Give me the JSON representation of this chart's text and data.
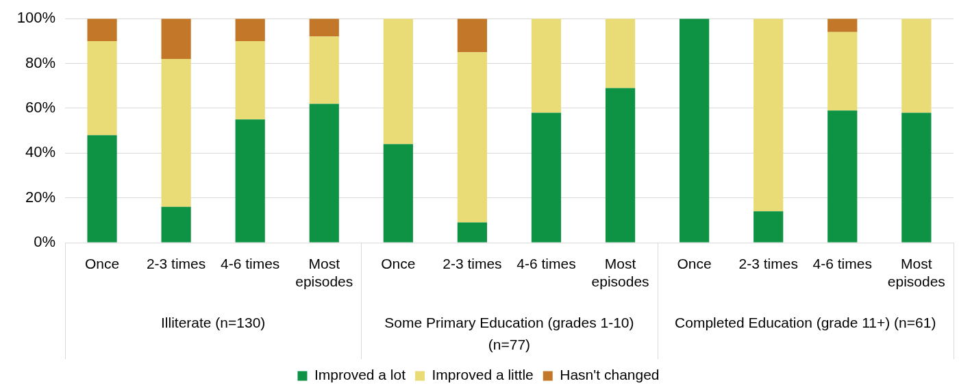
{
  "chart_data": {
    "type": "bar",
    "stacked": true,
    "categories": [
      "Once",
      "2-3 times",
      "4-6 times",
      "Most episodes",
      "Once",
      "2-3 times",
      "4-6 times",
      "Most episodes",
      "Once",
      "2-3 times",
      "4-6 times",
      "Most episodes"
    ],
    "series": [
      {
        "name": "Improved a lot",
        "color": "#0e9344",
        "values": [
          48,
          16,
          55,
          62,
          44,
          9,
          58,
          69,
          100,
          14,
          59,
          58
        ]
      },
      {
        "name": "Improved a little",
        "color": "#e9db76",
        "values": [
          42,
          66,
          35,
          30,
          56,
          76,
          42,
          31,
          0,
          86,
          35,
          42
        ]
      },
      {
        "name": "Hasn't changed",
        "color": "#c27828",
        "values": [
          10,
          18,
          10,
          8,
          0,
          15,
          0,
          0,
          0,
          0,
          6,
          0
        ]
      }
    ],
    "ylim": [
      0,
      100
    ],
    "yticks": [
      {
        "value": 0,
        "label": "0%"
      },
      {
        "value": 20,
        "label": "20%"
      },
      {
        "value": 40,
        "label": "40%"
      },
      {
        "value": 60,
        "label": "60%"
      },
      {
        "value": 80,
        "label": "80%"
      },
      {
        "value": 100,
        "label": "100%"
      }
    ],
    "annotations": [
      "Illiterate (n=130)",
      "Some Primary Education (grades 1-10) (n=77)",
      "Completed Education (grade 11+) (n=61)"
    ],
    "grid": "y",
    "legend": "bottom"
  }
}
